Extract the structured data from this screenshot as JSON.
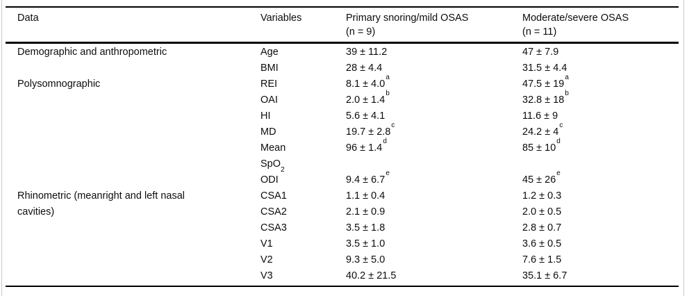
{
  "table": {
    "columns": [
      {
        "label": "Data"
      },
      {
        "label": "Variables"
      },
      {
        "label": "Primary snoring/mild OSAS",
        "sub_label": "(n = 9)"
      },
      {
        "label": "Moderate/severe OSAS",
        "sub_label": "(n = 11)"
      }
    ],
    "rows": [
      {
        "group": "Demographic and anthropometric",
        "variable": "Age",
        "variable_sub": "",
        "v1": "39 ± 11.2",
        "v1_sup": "",
        "v2": "47 ± 7.9",
        "v2_sup": ""
      },
      {
        "group": "",
        "variable": "BMI",
        "variable_sub": "",
        "v1": "28 ± 4.4",
        "v1_sup": "",
        "v2": "31.5 ± 4.4",
        "v2_sup": ""
      },
      {
        "group": "Polysomnographic",
        "variable": "REI",
        "variable_sub": "",
        "v1": "8.1 ± 4.0",
        "v1_sup": "a",
        "v2": "47.5 ± 19",
        "v2_sup": "a"
      },
      {
        "group": "",
        "variable": "OAI",
        "variable_sub": "",
        "v1": "2.0 ± 1.4",
        "v1_sup": "b",
        "v2": "32.8 ± 18",
        "v2_sup": "b"
      },
      {
        "group": "",
        "variable": "HI",
        "variable_sub": "",
        "v1": "5.6 ± 4.1",
        "v1_sup": "",
        "v2": "11.6 ± 9",
        "v2_sup": ""
      },
      {
        "group": "",
        "variable": "MD",
        "variable_sub": "",
        "v1": "19.7 ± 2.8",
        "v1_sup": "c",
        "v2": "24.2 ± 4",
        "v2_sup": "c"
      },
      {
        "group": "",
        "variable": "Mean",
        "variable_sub": "",
        "v1": "96 ± 1.4",
        "v1_sup": "d",
        "v2": "85 ± 10",
        "v2_sup": "d"
      },
      {
        "group": "",
        "variable": "SpO",
        "variable_sub": "2",
        "v1": "",
        "v1_sup": "",
        "v2": "",
        "v2_sup": ""
      },
      {
        "group": "",
        "variable": "ODI",
        "variable_sub": "",
        "v1": "9.4 ± 6.7",
        "v1_sup": "e",
        "v2": "45 ± 26",
        "v2_sup": "e"
      },
      {
        "group": "Rhinometric (meanright and left nasal",
        "variable": "CSA1",
        "variable_sub": "",
        "v1": "1.1 ± 0.4",
        "v1_sup": "",
        "v2": "1.2 ± 0.3",
        "v2_sup": ""
      },
      {
        "group": "cavities)",
        "variable": "CSA2",
        "variable_sub": "",
        "v1": "2.1 ± 0.9",
        "v1_sup": "",
        "v2": "2.0 ± 0.5",
        "v2_sup": ""
      },
      {
        "group": "",
        "variable": "CSA3",
        "variable_sub": "",
        "v1": "3.5 ± 1.8",
        "v1_sup": "",
        "v2": "2.8 ± 0.7",
        "v2_sup": ""
      },
      {
        "group": "",
        "variable": "V1",
        "variable_sub": "",
        "v1": "3.5 ± 1.0",
        "v1_sup": "",
        "v2": "3.6 ± 0.5",
        "v2_sup": ""
      },
      {
        "group": "",
        "variable": "V2",
        "variable_sub": "",
        "v1": "9.3 ± 5.0",
        "v1_sup": "",
        "v2": "7.6 ± 1.5",
        "v2_sup": ""
      },
      {
        "group": "",
        "variable": "V3",
        "variable_sub": "",
        "v1": "40.2 ± 21.5",
        "v1_sup": "",
        "v2": "35.1 ± 6.7",
        "v2_sup": ""
      }
    ]
  }
}
